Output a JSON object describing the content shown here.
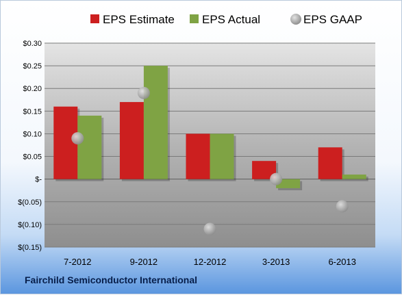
{
  "chart_data": {
    "type": "bar",
    "categories": [
      "7-2012",
      "9-2012",
      "12-2012",
      "3-2013",
      "6-2013"
    ],
    "series": [
      {
        "name": "EPS Estimate",
        "kind": "bar",
        "color": "#cc1f1f",
        "values": [
          0.16,
          0.17,
          0.1,
          0.04,
          0.07
        ]
      },
      {
        "name": "EPS Actual",
        "kind": "bar",
        "color": "#7fa344",
        "values": [
          0.14,
          0.25,
          0.1,
          -0.02,
          0.01
        ]
      },
      {
        "name": "EPS GAAP",
        "kind": "dot",
        "color": "#b0b0b0",
        "values": [
          0.09,
          0.19,
          -0.11,
          0.0,
          -0.06
        ]
      }
    ],
    "ylim": [
      -0.15,
      0.3
    ],
    "yticks": [
      0.3,
      0.25,
      0.2,
      0.15,
      0.1,
      0.05,
      0.0,
      -0.05,
      -0.1,
      -0.15
    ],
    "ytick_labels": [
      "$0.30",
      "$0.25",
      "$0.20",
      "$0.15",
      "$0.10",
      "$0.05",
      "$-",
      "$(0.05)",
      "$(0.10)",
      "$(0.15)"
    ],
    "legend_position": "top",
    "grid": true,
    "plot_area_color": "#aaaaaa"
  },
  "footer": {
    "company": "Fairchild Semiconductor International"
  }
}
